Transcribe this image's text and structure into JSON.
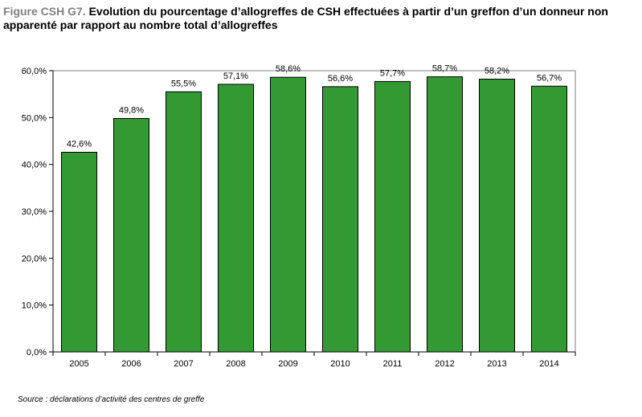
{
  "title": {
    "figure_label": "Figure CSH G7.",
    "text": " Evolution du pourcentage d’allogreffes de CSH effectuées à partir d’un greffon d’un donneur non apparenté par rapport au nombre total d’allogreffes"
  },
  "source": "Source : déclarations d’activité des centres de greffe",
  "colors": {
    "bar": "#339933",
    "bar_border": "#000000"
  },
  "chart_data": {
    "type": "bar",
    "categories": [
      "2005",
      "2006",
      "2007",
      "2008",
      "2009",
      "2010",
      "2011",
      "2012",
      "2013",
      "2014"
    ],
    "values": [
      42.6,
      49.8,
      55.5,
      57.1,
      58.6,
      56.6,
      57.7,
      58.7,
      58.2,
      56.7
    ],
    "value_labels": [
      "42,6%",
      "49,8%",
      "55,5%",
      "57,1%",
      "58,6%",
      "56,6%",
      "57,7%",
      "58,7%",
      "58,2%",
      "56,7%"
    ],
    "yticks": [
      0,
      10,
      20,
      30,
      40,
      50,
      60
    ],
    "ytick_labels": [
      "0,0%",
      "10,0%",
      "20,0%",
      "30,0%",
      "40,0%",
      "50,0%",
      "60,0%"
    ],
    "ylim": [
      0,
      60
    ],
    "xlabel": "",
    "ylabel": "",
    "grid": false
  }
}
